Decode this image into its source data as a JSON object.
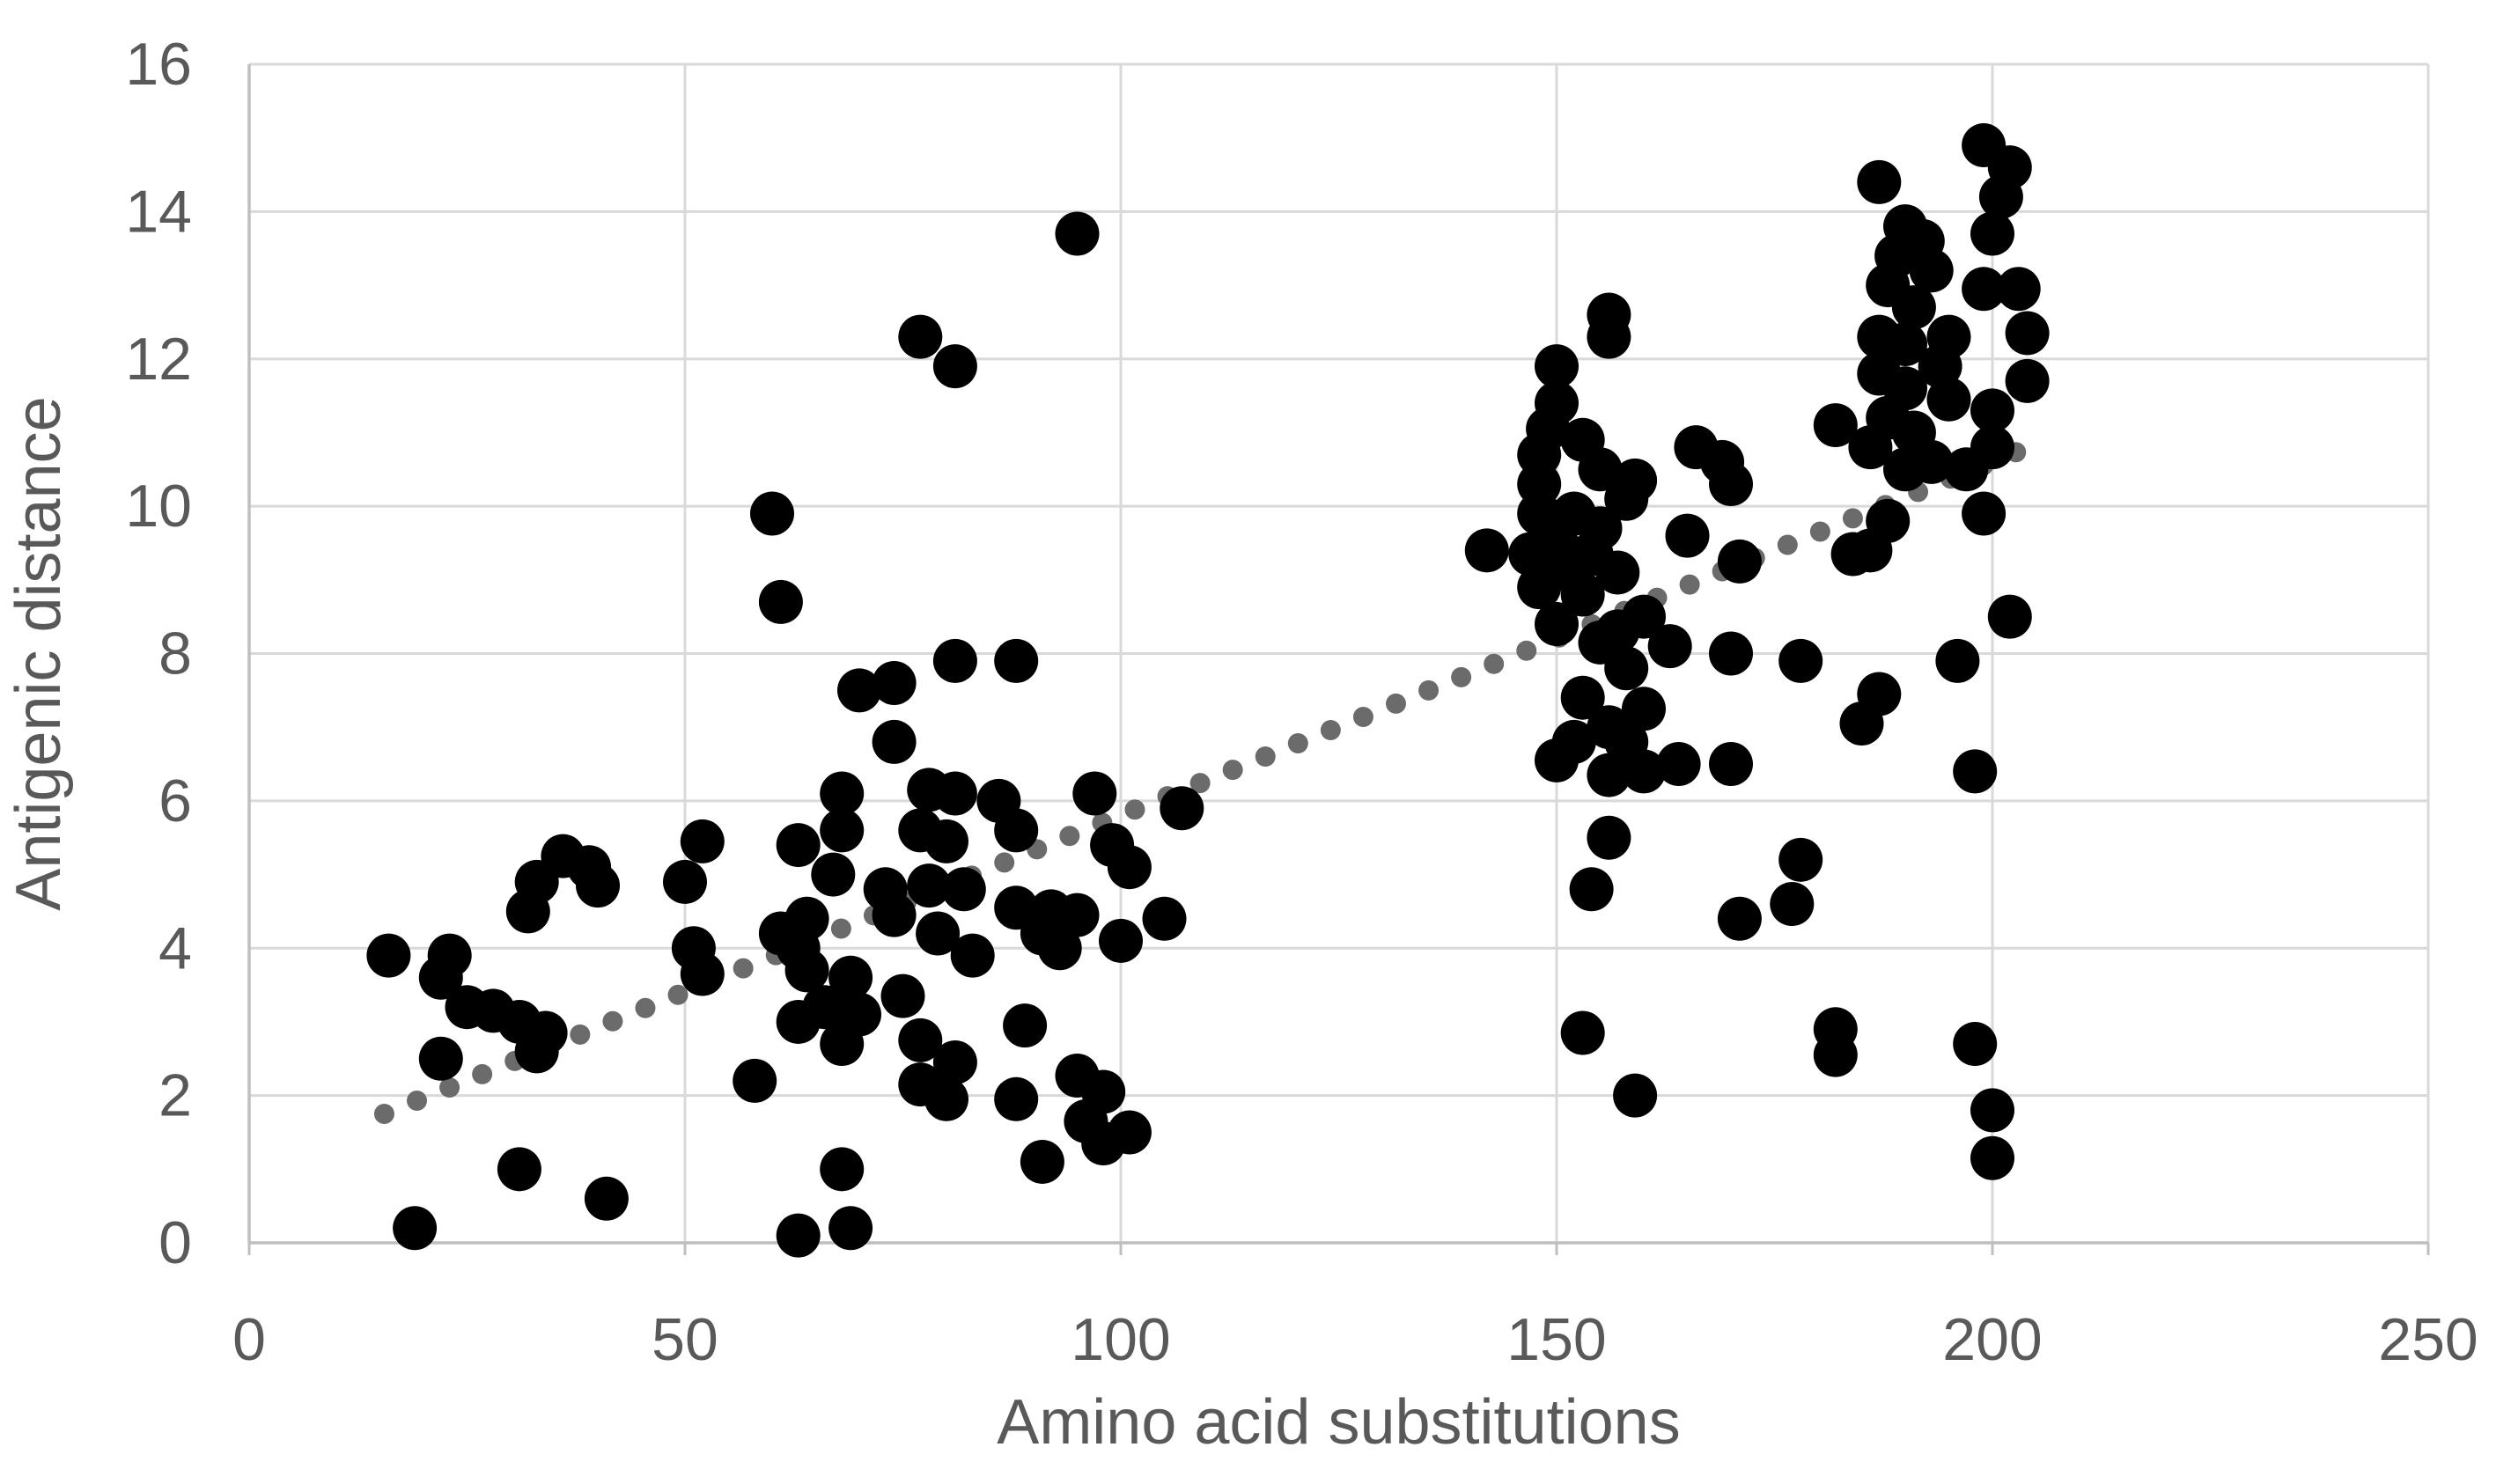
{
  "chart_data": {
    "type": "scatter",
    "title": "",
    "xlabel": "Amino acid substitutions",
    "ylabel": "Antigenic distance",
    "xlim": [
      0,
      250
    ],
    "ylim": [
      0,
      16
    ],
    "x_ticks": [
      0,
      50,
      100,
      150,
      200,
      250
    ],
    "y_ticks": [
      0,
      2,
      4,
      6,
      8,
      10,
      12,
      14,
      16
    ],
    "grid": true,
    "legend": false,
    "point_color": "#000000",
    "grid_color": "#D9D9D9",
    "axis_color": "#BFBFBF",
    "label_color": "#595959",
    "trendline": {
      "style": "dotted",
      "color": "#6B6B6B",
      "x_start": 15.5,
      "y_start": 1.75,
      "x_end": 204.5,
      "y_end": 10.82
    },
    "points": [
      [
        16,
        3.9
      ],
      [
        19,
        0.2
      ],
      [
        22,
        3.6
      ],
      [
        22,
        2.5
      ],
      [
        23,
        3.9
      ],
      [
        25,
        3.2
      ],
      [
        28,
        3.15
      ],
      [
        31,
        3.0
      ],
      [
        33,
        2.6
      ],
      [
        34,
        2.85
      ],
      [
        32,
        4.5
      ],
      [
        33,
        4.9
      ],
      [
        36,
        5.25
      ],
      [
        39,
        5.1
      ],
      [
        40,
        4.85
      ],
      [
        31,
        1.0
      ],
      [
        41,
        0.6
      ],
      [
        50,
        4.9
      ],
      [
        52,
        5.45
      ],
      [
        51,
        4.0
      ],
      [
        52,
        3.65
      ],
      [
        58,
        2.2
      ],
      [
        60,
        9.9
      ],
      [
        61,
        8.7
      ],
      [
        61,
        4.2
      ],
      [
        63,
        4.0
      ],
      [
        64,
        4.4
      ],
      [
        63,
        5.4
      ],
      [
        63,
        3.0
      ],
      [
        64,
        3.7
      ],
      [
        66,
        3.2
      ],
      [
        68,
        6.1
      ],
      [
        68,
        5.6
      ],
      [
        67,
        5.0
      ],
      [
        68,
        2.7
      ],
      [
        69,
        3.6
      ],
      [
        70,
        3.1
      ],
      [
        63,
        0.1
      ],
      [
        69,
        0.2
      ],
      [
        68,
        1.0
      ],
      [
        70,
        7.5
      ],
      [
        74,
        7.6
      ],
      [
        74,
        6.8
      ],
      [
        73,
        4.8
      ],
      [
        74,
        4.45
      ],
      [
        75,
        3.35
      ],
      [
        77,
        12.3
      ],
      [
        81,
        11.9
      ],
      [
        81,
        7.9
      ],
      [
        88,
        7.9
      ],
      [
        77,
        5.6
      ],
      [
        80,
        5.45
      ],
      [
        78,
        6.15
      ],
      [
        81,
        6.1
      ],
      [
        86,
        6.0
      ],
      [
        88,
        5.6
      ],
      [
        78,
        4.85
      ],
      [
        82,
        4.8
      ],
      [
        79,
        4.2
      ],
      [
        83,
        3.9
      ],
      [
        77,
        2.75
      ],
      [
        81,
        2.45
      ],
      [
        77,
        2.15
      ],
      [
        80,
        1.95
      ],
      [
        89,
        2.95
      ],
      [
        88,
        1.95
      ],
      [
        91,
        1.1
      ],
      [
        88,
        4.55
      ],
      [
        92,
        4.5
      ],
      [
        95,
        4.45
      ],
      [
        91,
        4.2
      ],
      [
        93,
        4.0
      ],
      [
        100,
        4.1
      ],
      [
        105,
        4.4
      ],
      [
        95,
        13.7
      ],
      [
        97,
        6.1
      ],
      [
        99,
        5.4
      ],
      [
        101,
        5.1
      ],
      [
        107,
        5.9
      ],
      [
        95,
        2.27
      ],
      [
        98,
        2.05
      ],
      [
        96,
        1.65
      ],
      [
        98,
        1.35
      ],
      [
        101,
        1.5
      ],
      [
        142,
        9.4
      ],
      [
        147,
        9.35
      ],
      [
        148,
        10.7
      ],
      [
        148,
        10.3
      ],
      [
        148,
        9.9
      ],
      [
        148,
        8.9
      ],
      [
        149,
        11.05
      ],
      [
        150,
        11.9
      ],
      [
        150,
        11.4
      ],
      [
        150,
        9.5
      ],
      [
        150,
        8.4
      ],
      [
        150,
        6.55
      ],
      [
        151,
        9.15
      ],
      [
        152,
        9.9
      ],
      [
        152,
        6.8
      ],
      [
        153,
        10.9
      ],
      [
        153,
        8.8
      ],
      [
        153,
        7.4
      ],
      [
        153,
        2.85
      ],
      [
        154,
        9.35
      ],
      [
        154,
        4.8
      ],
      [
        155,
        10.5
      ],
      [
        155,
        9.7
      ],
      [
        155,
        8.15
      ],
      [
        156,
        12.6
      ],
      [
        156,
        12.3
      ],
      [
        156,
        7.0
      ],
      [
        156,
        6.35
      ],
      [
        156,
        5.5
      ],
      [
        157,
        9.1
      ],
      [
        157,
        8.3
      ],
      [
        158,
        10.1
      ],
      [
        158,
        7.8
      ],
      [
        158,
        6.8
      ],
      [
        159,
        10.35
      ],
      [
        159,
        2.0
      ],
      [
        160,
        8.5
      ],
      [
        160,
        7.25
      ],
      [
        160,
        6.4
      ],
      [
        163,
        8.1
      ],
      [
        164,
        6.5
      ],
      [
        165,
        9.6
      ],
      [
        166,
        10.8
      ],
      [
        169,
        10.6
      ],
      [
        170,
        10.3
      ],
      [
        170,
        8.0
      ],
      [
        170,
        6.5
      ],
      [
        171,
        9.25
      ],
      [
        171,
        4.4
      ],
      [
        177,
        4.6
      ],
      [
        178,
        7.9
      ],
      [
        178,
        5.2
      ],
      [
        182,
        11.1
      ],
      [
        182,
        2.9
      ],
      [
        182,
        2.55
      ],
      [
        184,
        9.35
      ],
      [
        185,
        7.05
      ],
      [
        186,
        10.8
      ],
      [
        186,
        9.4
      ],
      [
        187,
        14.4
      ],
      [
        187,
        12.3
      ],
      [
        187,
        11.8
      ],
      [
        187,
        7.45
      ],
      [
        188,
        13.0
      ],
      [
        188,
        11.2
      ],
      [
        188,
        9.8
      ],
      [
        189,
        13.4
      ],
      [
        190,
        13.8
      ],
      [
        190,
        12.2
      ],
      [
        190,
        11.6
      ],
      [
        190,
        10.5
      ],
      [
        191,
        12.7
      ],
      [
        191,
        11.0
      ],
      [
        192,
        13.6
      ],
      [
        193,
        13.2
      ],
      [
        193,
        10.6
      ],
      [
        194,
        11.9
      ],
      [
        195,
        12.3
      ],
      [
        195,
        11.45
      ],
      [
        196,
        7.9
      ],
      [
        197,
        10.5
      ],
      [
        198,
        6.4
      ],
      [
        198,
        2.7
      ],
      [
        199,
        14.9
      ],
      [
        199,
        12.95
      ],
      [
        199,
        9.9
      ],
      [
        200,
        13.7
      ],
      [
        200,
        11.3
      ],
      [
        200,
        10.8
      ],
      [
        200,
        1.8
      ],
      [
        200,
        1.15
      ],
      [
        201,
        14.2
      ],
      [
        202,
        14.6
      ],
      [
        202,
        8.5
      ],
      [
        203,
        12.95
      ],
      [
        204,
        12.35
      ],
      [
        204,
        11.7
      ]
    ]
  }
}
